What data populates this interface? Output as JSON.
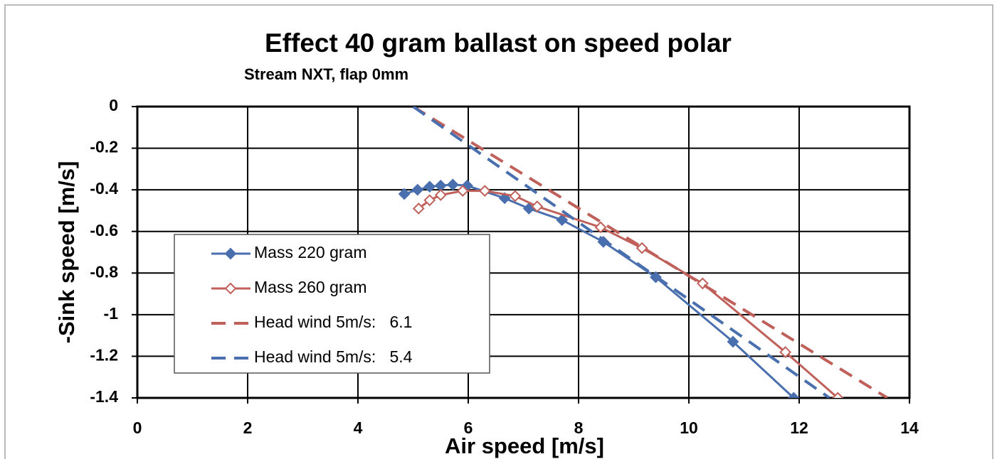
{
  "chart_data": {
    "type": "line",
    "title": "Effect 40 gram ballast on speed polar",
    "subtitle": "Stream NXT, flap 0mm",
    "x_label": "Air speed [m/s]",
    "y_label": "-Sink speed [m/s]",
    "xlim": [
      0,
      14
    ],
    "xticks": [
      0,
      2,
      4,
      6,
      8,
      10,
      12,
      14
    ],
    "ylim": [
      -1.4,
      0
    ],
    "yticks": [
      0,
      -0.2,
      -0.4,
      -0.6,
      -0.8,
      -1,
      -1.2,
      -1.4
    ],
    "grid": true,
    "legend": "lower left",
    "series": [
      {
        "name": "Mass 220 gram",
        "color": "#4a6fae",
        "line": "solid",
        "marker": "filled-diamond",
        "x": [
          4.84,
          5.08,
          5.3,
          5.5,
          5.72,
          5.98,
          6.66,
          7.1,
          7.7,
          8.45,
          9.4,
          10.8,
          11.9
        ],
        "values": [
          -0.42,
          -0.4,
          -0.385,
          -0.38,
          -0.375,
          -0.38,
          -0.44,
          -0.49,
          -0.545,
          -0.65,
          -0.82,
          -1.13,
          -1.4
        ]
      },
      {
        "name": "Mass 260 gram",
        "color": "#c0605a",
        "line": "solid",
        "marker": "open-diamond",
        "x": [
          5.1,
          5.3,
          5.5,
          5.9,
          6.3,
          6.85,
          7.25,
          8.4,
          9.15,
          10.25,
          11.75,
          12.7
        ],
        "values": [
          -0.49,
          -0.45,
          -0.425,
          -0.405,
          -0.405,
          -0.43,
          -0.48,
          -0.58,
          -0.68,
          -0.85,
          -1.18,
          -1.4
        ]
      },
      {
        "name": "Head wind 5m/s:   6.1",
        "color": "#c0605a",
        "line": "dashed",
        "marker": "none",
        "x": [
          5,
          13.6
        ],
        "values": [
          0,
          -1.4
        ]
      },
      {
        "name": "Head wind 5m/s:   5.4",
        "color": "#4a6fae",
        "line": "dashed",
        "marker": "none",
        "x": [
          5,
          12.55
        ],
        "values": [
          0,
          -1.4
        ]
      }
    ]
  }
}
